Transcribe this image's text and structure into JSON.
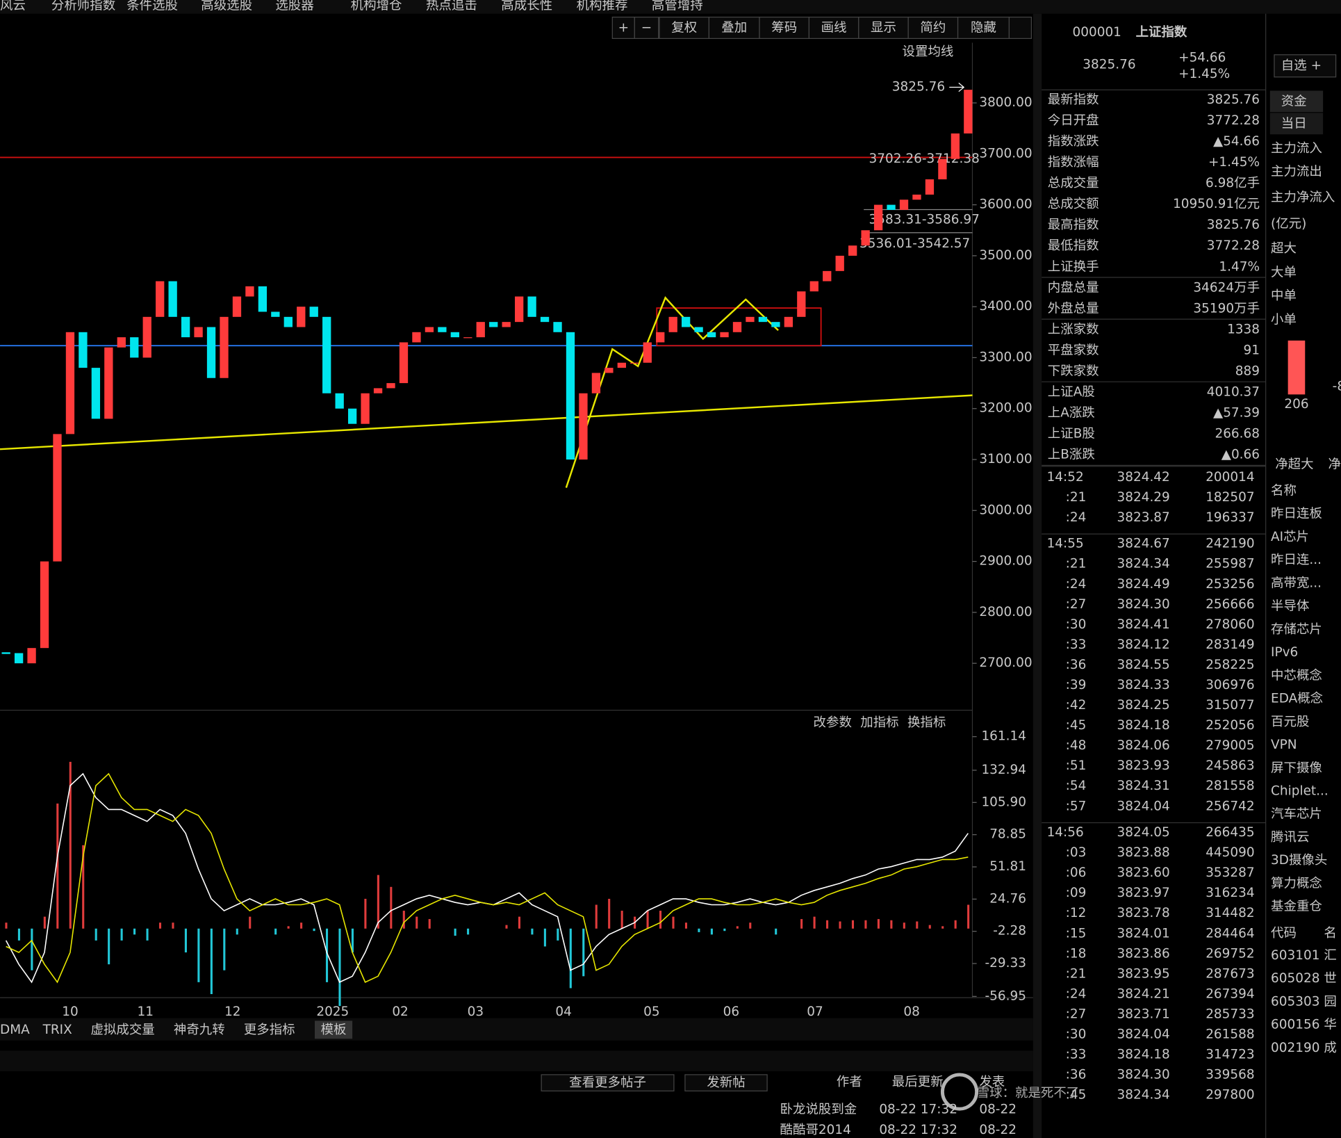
{
  "menu": [
    "风云",
    "分析师指数",
    "条件选股",
    "高级选股",
    "选股器",
    "机构增仓",
    "热点追击",
    "高成长性",
    "机构推荐",
    "高管增持"
  ],
  "toolbar": [
    "+",
    "−",
    "复权",
    "叠加",
    "筹码",
    "画线",
    "显示",
    "简约",
    "隐藏"
  ],
  "ma_setting": "设置均线",
  "indicator_tools": [
    "改参数",
    "加指标",
    "换指标"
  ],
  "chart_data": [
    {
      "type": "candlestick",
      "name": "price",
      "closes": [
        2720,
        2700,
        2730,
        2900,
        3150,
        3350,
        3280,
        3180,
        3320,
        3340,
        3300,
        3380,
        3450,
        3380,
        3340,
        3360,
        3260,
        3380,
        3420,
        3440,
        3390,
        3380,
        3360,
        3400,
        3380,
        3230,
        3200,
        3170,
        3230,
        3240,
        3250,
        3330,
        3350,
        3360,
        3350,
        3340,
        3340,
        3370,
        3360,
        3370,
        3420,
        3380,
        3370,
        3350,
        3100,
        3230,
        3270,
        3280,
        3290,
        3290,
        3330,
        3350,
        3380,
        3360,
        3350,
        3340,
        3350,
        3370,
        3380,
        3370,
        3360,
        3380,
        3430,
        3450,
        3470,
        3500,
        3520,
        3550,
        3600,
        3590,
        3610,
        3620,
        3650,
        3690,
        3740,
        3825.76
      ],
      "ylim": [
        2608,
        3918
      ],
      "yticks": [
        {
          "value": 3800,
          "label": "3800.00"
        },
        {
          "value": 3700,
          "label": "3700.00"
        },
        {
          "value": 3600,
          "label": "3600.00"
        },
        {
          "value": 3500,
          "label": "3500.00"
        },
        {
          "value": 3400,
          "label": "3400.00"
        },
        {
          "value": 3300,
          "label": "3300.00"
        },
        {
          "value": 3200,
          "label": "3200.00"
        },
        {
          "value": 3100,
          "label": "3100.00"
        },
        {
          "value": 3000,
          "label": "3000.00"
        },
        {
          "value": 2900,
          "label": "2900.00"
        },
        {
          "value": 2800,
          "label": "2800.00"
        },
        {
          "value": 2700,
          "label": "2700.00"
        }
      ],
      "annotations": [
        "3825.76",
        "3702.26-3712.38",
        "3583.31-3586.97",
        "3536.01-3542.57"
      ],
      "up_color": "#ff3b3b",
      "down_color": "#00e5ee"
    },
    {
      "type": "macd",
      "name": "macd",
      "series": [
        {
          "name": "DIF",
          "color": "#ffffff",
          "values": [
            -10,
            -30,
            -45,
            -20,
            60,
            120,
            130,
            110,
            100,
            100,
            95,
            90,
            100,
            95,
            80,
            50,
            25,
            15,
            20,
            25,
            20,
            20,
            22,
            25,
            20,
            -20,
            -45,
            -40,
            -20,
            5,
            15,
            20,
            25,
            28,
            25,
            22,
            20,
            22,
            20,
            25,
            30,
            20,
            15,
            10,
            -35,
            -30,
            -15,
            -5,
            0,
            5,
            15,
            20,
            25,
            25,
            22,
            20,
            20,
            22,
            25,
            22,
            20,
            22,
            28,
            32,
            35,
            38,
            42,
            45,
            50,
            52,
            55,
            58,
            58,
            60,
            65,
            80
          ]
        },
        {
          "name": "DEA",
          "color": "#e6e600",
          "values": [
            -15,
            -20,
            -10,
            -30,
            -45,
            -20,
            60,
            120,
            130,
            110,
            100,
            100,
            95,
            90,
            100,
            95,
            80,
            50,
            25,
            15,
            20,
            25,
            20,
            20,
            22,
            25,
            20,
            -20,
            -45,
            -40,
            -20,
            5,
            15,
            20,
            25,
            28,
            25,
            22,
            20,
            22,
            20,
            25,
            30,
            20,
            15,
            10,
            -35,
            -30,
            -15,
            -5,
            0,
            5,
            15,
            20,
            25,
            25,
            22,
            20,
            20,
            22,
            25,
            22,
            20,
            22,
            28,
            32,
            35,
            38,
            42,
            45,
            50,
            52,
            55,
            58,
            58,
            60
          ]
        }
      ],
      "histogram": [
        5,
        -10,
        -35,
        10,
        105,
        140,
        70,
        -10,
        -30,
        -10,
        -5,
        -10,
        5,
        5,
        -20,
        -45,
        -55,
        -35,
        -5,
        10,
        0,
        -5,
        2,
        5,
        -2,
        -45,
        -65,
        -20,
        25,
        45,
        35,
        15,
        10,
        8,
        0,
        -6,
        -5,
        0,
        0,
        3,
        10,
        -5,
        -15,
        -10,
        -50,
        -40,
        20,
        25,
        15,
        10,
        15,
        15,
        10,
        5,
        -3,
        -5,
        -2,
        2,
        5,
        0,
        -5,
        0,
        8,
        10,
        7,
        6,
        7,
        7,
        8,
        7,
        5,
        6,
        3,
        2,
        7,
        20
      ],
      "ylim": [
        -58,
        169
      ],
      "yticks": [
        {
          "value": 161.14,
          "label": "161.14"
        },
        {
          "value": 132.94,
          "label": "132.94"
        },
        {
          "value": 105.9,
          "label": "105.90"
        },
        {
          "value": 78.85,
          "label": "78.85"
        },
        {
          "value": 51.81,
          "label": "51.81"
        },
        {
          "value": 24.76,
          "label": "24.76"
        },
        {
          "value": -2.28,
          "label": "-2.28"
        },
        {
          "value": -29.33,
          "label": "-29.33"
        },
        {
          "value": -56.95,
          "label": "-56.95"
        }
      ],
      "up_color": "#e03c3c",
      "down_color": "#22c8d8"
    }
  ],
  "x_axis": [
    "10",
    "11",
    "12",
    "2025",
    "02",
    "03",
    "04",
    "05",
    "06",
    "07",
    "08"
  ],
  "tabs": [
    "DMA",
    "TRIX",
    "虚拟成交量",
    "神奇九转",
    "更多指标",
    "模板"
  ],
  "forum": {
    "buttons": [
      "查看更多帖子",
      "发新帖"
    ],
    "headers": [
      "作者",
      "最后更新",
      "发表"
    ],
    "rows": [
      [
        "卧龙说股到金",
        "08-22 17:32",
        "08-22"
      ],
      [
        "酷酷哥2014",
        "08-22 17:32",
        "08-22"
      ]
    ]
  },
  "watermark": "雪球：就是死不了",
  "quote": {
    "code": "000001",
    "name": "上证指数",
    "price": "3825.76",
    "change": "+54.66",
    "pct": "+1.45%",
    "watch": "自选 +",
    "rows": [
      [
        "最新指数",
        "3825.76",
        "r"
      ],
      [
        "今日开盘",
        "3772.28",
        "r"
      ],
      [
        "指数涨跌",
        "▲54.66",
        "r"
      ],
      [
        "指数涨幅",
        "+1.45%",
        "r"
      ],
      [
        "总成交量",
        "6.98亿手",
        "w"
      ],
      [
        "总成交额",
        "10950.91亿元",
        "c"
      ],
      [
        "最高指数",
        "3825.76",
        "r"
      ],
      [
        "最低指数",
        "3772.28",
        "r"
      ],
      [
        "上证换手",
        "1.47%",
        "w"
      ],
      [
        "内盘总量",
        "34624万手",
        "g"
      ],
      [
        "外盘总量",
        "35190万手",
        "r"
      ],
      [
        "上涨家数",
        "1338",
        "r"
      ],
      [
        "平盘家数",
        "91",
        "w"
      ],
      [
        "下跌家数",
        "889",
        "g"
      ],
      [
        "上证A股",
        "4010.37",
        "r"
      ],
      [
        "上A涨跌",
        "▲57.39",
        "r"
      ],
      [
        "上证B股",
        "266.68",
        "r"
      ],
      [
        "上B涨跌",
        "▲0.66",
        "r"
      ]
    ]
  },
  "ticks": [
    [
      "14:52",
      "3824.42",
      "200014"
    ],
    [
      ":21",
      "3824.29",
      "182507"
    ],
    [
      ":24",
      "3823.87",
      "196337"
    ],
    [
      "14:55",
      "3824.67",
      "242190"
    ],
    [
      ":21",
      "3824.34",
      "255987"
    ],
    [
      ":24",
      "3824.49",
      "253256"
    ],
    [
      ":27",
      "3824.30",
      "256666"
    ],
    [
      ":30",
      "3824.41",
      "278060"
    ],
    [
      ":33",
      "3824.12",
      "283149"
    ],
    [
      ":36",
      "3824.55",
      "258225"
    ],
    [
      ":39",
      "3824.33",
      "306976"
    ],
    [
      ":42",
      "3824.25",
      "315077"
    ],
    [
      ":45",
      "3824.18",
      "252056"
    ],
    [
      ":48",
      "3824.06",
      "279005"
    ],
    [
      ":51",
      "3823.93",
      "245863"
    ],
    [
      ":54",
      "3824.31",
      "281558"
    ],
    [
      ":57",
      "3824.04",
      "256742"
    ],
    [
      "14:56",
      "3824.05",
      "266435"
    ],
    [
      ":03",
      "3823.88",
      "445090"
    ],
    [
      ":06",
      "3823.60",
      "353287"
    ],
    [
      ":09",
      "3823.97",
      "316234"
    ],
    [
      ":12",
      "3823.78",
      "314482"
    ],
    [
      ":15",
      "3824.01",
      "284464"
    ],
    [
      ":18",
      "3823.86",
      "269752"
    ],
    [
      ":21",
      "3823.95",
      "287673"
    ],
    [
      ":24",
      "3824.21",
      "267394"
    ],
    [
      ":27",
      "3823.71",
      "285733"
    ],
    [
      ":30",
      "3824.04",
      "261588"
    ],
    [
      ":33",
      "3824.18",
      "314723"
    ],
    [
      ":36",
      "3824.30",
      "339568"
    ],
    [
      ":45",
      "3824.34",
      "297800"
    ]
  ],
  "capital": {
    "tabs": [
      "资金",
      "当日"
    ],
    "labels": [
      "主力流入",
      "主力流出",
      "主力净流入",
      "(亿元)",
      "超大",
      "大单",
      "中单",
      "小单"
    ],
    "bar_label": "206",
    "bar2_label": "-8",
    "net": [
      "净超大",
      "净"
    ]
  },
  "sectors": {
    "header": "名称",
    "items": [
      "昨日连板",
      "AI芯片",
      "昨日连...",
      "高带宽...",
      "半导体",
      "存储芯片",
      "IPv6",
      "中芯概念",
      "EDA概念",
      "百元股",
      "VPN",
      "屏下摄像",
      "Chiplet...",
      "汽车芯片",
      "腾讯云",
      "3D摄像头",
      "算力概念",
      "基金重仓"
    ]
  },
  "stocks": {
    "headers": [
      "代码",
      "名"
    ],
    "rows": [
      [
        "603101",
        "汇"
      ],
      [
        "605028",
        "世"
      ],
      [
        "605303",
        "园"
      ],
      [
        "600156",
        "华"
      ],
      [
        "002190",
        "成"
      ]
    ]
  }
}
